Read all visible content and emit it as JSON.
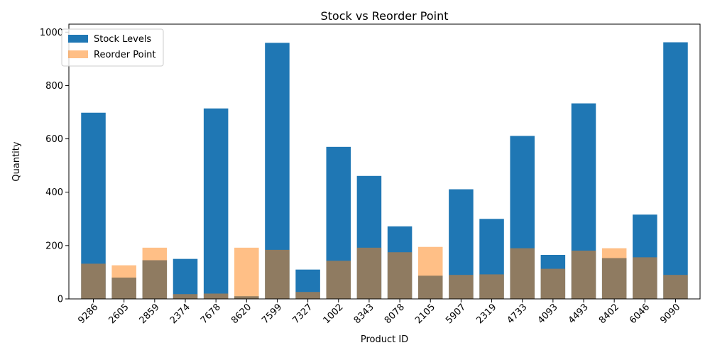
{
  "chart_data": {
    "type": "bar",
    "title": "Stock vs Reorder Point",
    "xlabel": "Product ID",
    "ylabel": "Quantity",
    "ylim": [
      0,
      1000
    ],
    "yticks": [
      0,
      200,
      400,
      600,
      800,
      1000
    ],
    "categories": [
      "9286",
      "2605",
      "2859",
      "2374",
      "7678",
      "8620",
      "7599",
      "7327",
      "1002",
      "8343",
      "8078",
      "2105",
      "5907",
      "2319",
      "4733",
      "4093",
      "4493",
      "8402",
      "6046",
      "9090"
    ],
    "series": [
      {
        "name": "Stock Levels",
        "color": "#1f77b4",
        "opacity": 1,
        "values": [
          698,
          80,
          145,
          150,
          714,
          10,
          960,
          110,
          570,
          461,
          272,
          87,
          411,
          300,
          611,
          165,
          733,
          153,
          316,
          962
        ]
      },
      {
        "name": "Reorder Point",
        "color": "#ff7f0e",
        "opacity": 0.5,
        "values": [
          132,
          126,
          192,
          18,
          20,
          192,
          184,
          26,
          143,
          192,
          175,
          195,
          90,
          92,
          190,
          113,
          181,
          190,
          156,
          90
        ]
      }
    ],
    "legend_position": "top-left",
    "grid": false
  }
}
